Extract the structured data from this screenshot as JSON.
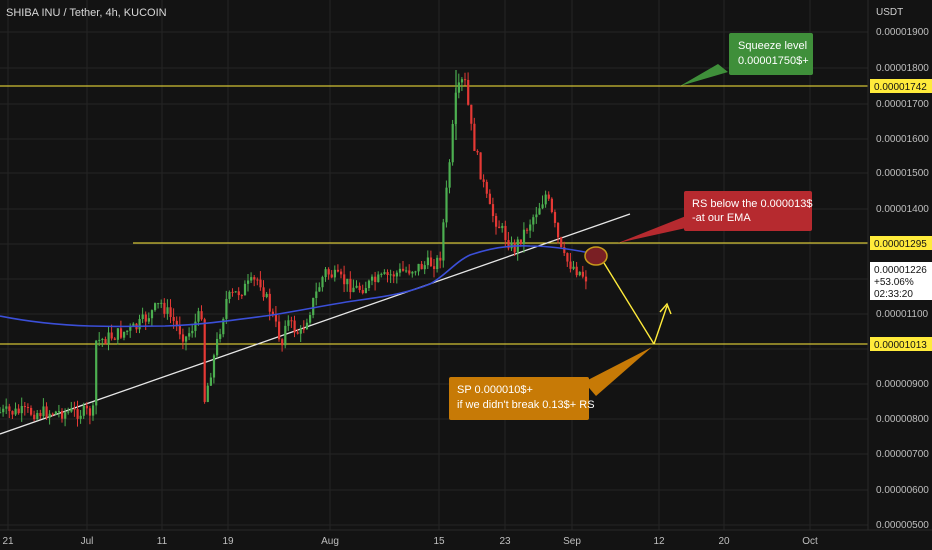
{
  "header": {
    "symbol_title": "SHIBA INU / Tether, 4h, KUCOIN"
  },
  "price_axis": {
    "currency_label": "USDT",
    "ticks": [
      "0.00001900",
      "0.00001800",
      "0.00001700",
      "0.00001600",
      "0.00001500",
      "0.00001400",
      "0.00001100",
      "0.00000900",
      "0.00000800",
      "0.00000700",
      "0.00000600",
      "0.00000500"
    ]
  },
  "time_axis": {
    "ticks": [
      "21",
      "Jul",
      "11",
      "19",
      "Aug",
      "15",
      "23",
      "Sep",
      "12",
      "20",
      "Oct"
    ]
  },
  "price_tags": {
    "squeeze": "0.00001742",
    "resistance": "0.00001295",
    "support": "0.00001013",
    "current_price": "0.00001226",
    "current_change": "+53.06%",
    "countdown": "02:33:20"
  },
  "annotations": {
    "squeeze_line1": "Squeeze level",
    "squeeze_line2": "0.00001750$+",
    "rs_line1": "RS below the 0.000013$",
    "rs_line2": "-at our EMA",
    "sp_line1": "SP 0.000010$+",
    "sp_line2": "if we didn't break 0.13$+ RS"
  },
  "colors": {
    "background": "#131313",
    "up_candle": "#4caf50",
    "down_candle": "#e53935",
    "level_line": "#ffeb3b",
    "ema_line": "#3b4fd8",
    "trendline": "#e6e6e6",
    "squeeze_box": "#3f8f3a",
    "rs_box": "#b62a2f",
    "sp_box": "#c77a06"
  },
  "chart_data": {
    "type": "candlestick",
    "title": "SHIBA INU / Tether, 4h, KUCOIN",
    "ylabel": "USDT",
    "ylim": [
      5e-06,
      1.95e-05
    ],
    "horizontal_levels": [
      1.742e-05,
      1.295e-05,
      1.013e-05
    ],
    "current_price": 1.226e-05,
    "change_percent": "+53.06%",
    "ema_path": [
      {
        "x": "Jun 18",
        "y": 1.11e-05
      },
      {
        "x": "Jul 1",
        "y": 1.08e-05
      },
      {
        "x": "Jul 12",
        "y": 1.09e-05
      },
      {
        "x": "Jul 20",
        "y": 1.11e-05
      },
      {
        "x": "Jul 29",
        "y": 1.14e-05
      },
      {
        "x": "Aug 5",
        "y": 1.17e-05
      },
      {
        "x": "Aug 14",
        "y": 1.24e-05
      },
      {
        "x": "Aug 19",
        "y": 1.28e-05
      },
      {
        "x": "Aug 27",
        "y": 1.3e-05
      },
      {
        "x": "Sep 2",
        "y": 1.29e-05
      }
    ],
    "trendline": [
      {
        "x": "Jun 18",
        "y": 8e-06
      },
      {
        "x": "Sep 7",
        "y": 1.37e-05
      }
    ],
    "price_path": [
      {
        "x": "Jun 18",
        "y": 8.2e-06
      },
      {
        "x": "Jun 21",
        "y": 1.14e-05
      },
      {
        "x": "Jun 25",
        "y": 1.2e-05
      },
      {
        "x": "Jun 28",
        "y": 1e-05
      },
      {
        "x": "Jul 2",
        "y": 1.02e-05
      },
      {
        "x": "Jul 7",
        "y": 1.06e-05
      },
      {
        "x": "Jul 10",
        "y": 1.13e-05
      },
      {
        "x": "Jul 13",
        "y": 1.03e-05
      },
      {
        "x": "Jul 17",
        "y": 1.18e-05
      },
      {
        "x": "Jul 19",
        "y": 1.3e-05
      },
      {
        "x": "Jul 22",
        "y": 1.16e-05
      },
      {
        "x": "Jul 27",
        "y": 1.04e-05
      },
      {
        "x": "Jul 30",
        "y": 1.22e-05
      },
      {
        "x": "Aug 3",
        "y": 1.17e-05
      },
      {
        "x": "Aug 7",
        "y": 1.21e-05
      },
      {
        "x": "Aug 10",
        "y": 1.23e-05
      },
      {
        "x": "Aug 13",
        "y": 1.25e-05
      },
      {
        "x": "Aug 15",
        "y": 1.72e-05
      },
      {
        "x": "Aug 16",
        "y": 1.77e-05
      },
      {
        "x": "Aug 17",
        "y": 1.6e-05
      },
      {
        "x": "Aug 19",
        "y": 1.4e-05
      },
      {
        "x": "Aug 22",
        "y": 1.28e-05
      },
      {
        "x": "Aug 26",
        "y": 1.44e-05
      },
      {
        "x": "Aug 28",
        "y": 1.26e-05
      },
      {
        "x": "Aug 31",
        "y": 1.2e-05
      },
      {
        "x": "Sep 2",
        "y": 1.25e-05
      }
    ],
    "projection": [
      {
        "x": "Sep 3",
        "y": 1.28e-05
      },
      {
        "x": "Sep 11",
        "y": 1.01e-05
      },
      {
        "x": "Sep 12",
        "y": 1.1e-05
      }
    ]
  }
}
